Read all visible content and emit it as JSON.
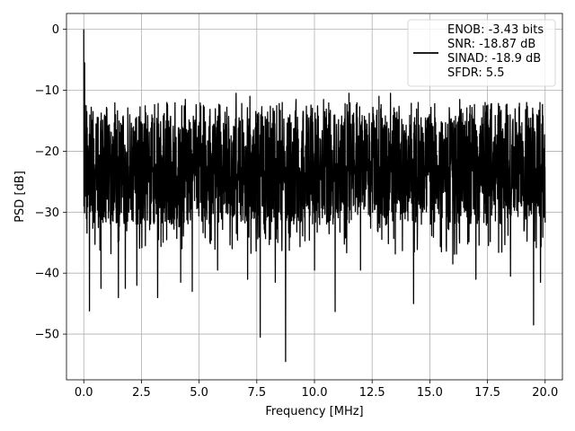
{
  "chart_data": {
    "type": "line",
    "title": "",
    "xlabel": "Frequency [MHz]",
    "ylabel": "PSD [dB]",
    "xlim": [
      -0.75,
      20.75
    ],
    "ylim": [
      -57.5,
      2.6
    ],
    "x_ticks": [
      0.0,
      2.5,
      5.0,
      7.5,
      10.0,
      12.5,
      15.0,
      17.5,
      20.0
    ],
    "x_tick_labels": [
      "0.0",
      "2.5",
      "5.0",
      "7.5",
      "10.0",
      "12.5",
      "15.0",
      "17.5",
      "20.0"
    ],
    "y_ticks": [
      0,
      -10,
      -20,
      -30,
      -40,
      -50
    ],
    "y_tick_labels": [
      "0",
      "−10",
      "−20",
      "−30",
      "−40",
      "−50"
    ],
    "grid": true,
    "legend_position": "top-right",
    "legend_entries": [
      "ENOB: -3.43 bits",
      "SNR: -18.87 dB",
      "SINAD: -18.9 dB",
      "SFDR: 5.5"
    ],
    "series": [
      {
        "color": "#000000",
        "x_range": [
          0.0,
          20.0
        ],
        "noise_floor_db": -21,
        "band_top_db": -14,
        "band_bottom_db": -32,
        "peaks": [
          {
            "x": 0.0,
            "y": 0.0
          },
          {
            "x": 0.04,
            "y": -5.5
          },
          {
            "x": 0.1,
            "y": -12.5
          }
        ],
        "deep_dips": [
          {
            "x": 0.1,
            "y": -39.5
          },
          {
            "x": 0.25,
            "y": -46.2
          },
          {
            "x": 0.75,
            "y": -42.5
          },
          {
            "x": 1.5,
            "y": -44
          },
          {
            "x": 1.8,
            "y": -42.5
          },
          {
            "x": 2.3,
            "y": -42
          },
          {
            "x": 3.2,
            "y": -44
          },
          {
            "x": 4.2,
            "y": -41.5
          },
          {
            "x": 4.7,
            "y": -43
          },
          {
            "x": 5.8,
            "y": -39.5
          },
          {
            "x": 7.1,
            "y": -41
          },
          {
            "x": 7.65,
            "y": -50.5
          },
          {
            "x": 8.3,
            "y": -41.5
          },
          {
            "x": 8.75,
            "y": -54.5
          },
          {
            "x": 10.0,
            "y": -39.5
          },
          {
            "x": 10.9,
            "y": -46.3
          },
          {
            "x": 12.0,
            "y": -39.5
          },
          {
            "x": 14.3,
            "y": -45
          },
          {
            "x": 16.0,
            "y": -38.5
          },
          {
            "x": 17.0,
            "y": -41
          },
          {
            "x": 18.5,
            "y": -40.5
          },
          {
            "x": 19.5,
            "y": -48.5
          },
          {
            "x": 19.8,
            "y": -41.5
          }
        ],
        "high_peaks": [
          {
            "x": 0.4,
            "y": -13.5
          },
          {
            "x": 1.0,
            "y": -13
          },
          {
            "x": 3.6,
            "y": -12
          },
          {
            "x": 4.4,
            "y": -11.5
          },
          {
            "x": 6.6,
            "y": -10.5
          },
          {
            "x": 7.2,
            "y": -11
          },
          {
            "x": 8.6,
            "y": -12
          },
          {
            "x": 9.2,
            "y": -11.5
          },
          {
            "x": 10.4,
            "y": -11.5
          },
          {
            "x": 11.5,
            "y": -10.5
          },
          {
            "x": 12.8,
            "y": -11
          },
          {
            "x": 13.3,
            "y": -10.5
          },
          {
            "x": 14.5,
            "y": -12
          },
          {
            "x": 16.3,
            "y": -11.5
          },
          {
            "x": 17.4,
            "y": -12
          },
          {
            "x": 19.2,
            "y": -12
          },
          {
            "x": 19.8,
            "y": -12
          }
        ]
      }
    ]
  }
}
